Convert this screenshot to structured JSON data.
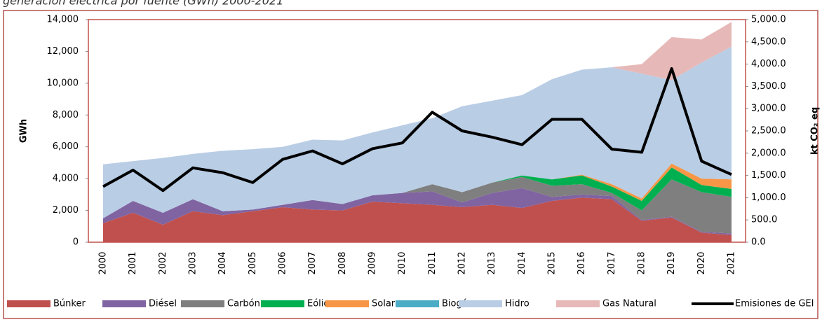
{
  "chart_data": {
    "type": "stacked_area",
    "title": "generación eléctrica por fuente (GWh) 2000-2021",
    "ylabel": "GWh",
    "y2label": "kt CO₂ eq",
    "categories": [
      "2000",
      "2001",
      "2002",
      "2003",
      "2004",
      "2005",
      "2006",
      "2007",
      "2008",
      "2009",
      "2010",
      "2011",
      "2012",
      "2013",
      "2014",
      "2015",
      "2016",
      "2017",
      "2018",
      "2019",
      "2020",
      "2021"
    ],
    "ylim": [
      0,
      14000
    ],
    "yticks": [
      0,
      {
        "value": 2000,
        "label": "2,000"
      },
      {
        "value": 4000,
        "label": "4,000"
      },
      {
        "value": 6000,
        "label": "6,000"
      },
      {
        "value": 8000,
        "label": "8,000"
      },
      {
        "value": 10000,
        "label": "10,000"
      },
      {
        "value": 12000,
        "label": "12,000"
      },
      {
        "value": 14000,
        "label": "14,000"
      }
    ],
    "y2lim": [
      0,
      5000
    ],
    "y2ticks": [
      {
        "value": 0,
        "label": "0.0"
      },
      {
        "value": 500,
        "label": "500.0"
      },
      {
        "value": 1000,
        "label": "1,000.0"
      },
      {
        "value": 1500,
        "label": "1,500.0"
      },
      {
        "value": 2000,
        "label": "2,000.0"
      },
      {
        "value": 2500,
        "label": "2,500.0"
      },
      {
        "value": 3000,
        "label": "3,000.0"
      },
      {
        "value": 3500,
        "label": "3,500.0"
      },
      {
        "value": 4000,
        "label": "4,000.0"
      },
      {
        "value": 4500,
        "label": "4,500.0"
      },
      {
        "value": 5000,
        "label": "5,000.0"
      }
    ],
    "series": [
      {
        "name": "Búnker",
        "color": "#c0504d",
        "values": [
          1200,
          1850,
          1100,
          1950,
          1700,
          1950,
          2200,
          2050,
          2000,
          2550,
          2450,
          2350,
          2200,
          2350,
          2150,
          2600,
          2800,
          2700,
          1350,
          1550,
          600,
          450
        ]
      },
      {
        "name": "Diésel",
        "color": "#8064a2",
        "values": [
          300,
          750,
          750,
          750,
          250,
          100,
          150,
          600,
          400,
          400,
          650,
          850,
          300,
          750,
          1250,
          250,
          200,
          200,
          50,
          50,
          50,
          100
        ]
      },
      {
        "name": "Carbón",
        "color": "#7f7f7f",
        "values": [
          0,
          0,
          0,
          0,
          0,
          0,
          0,
          0,
          0,
          0,
          0,
          450,
          650,
          650,
          700,
          700,
          650,
          200,
          600,
          2350,
          2500,
          2300
        ]
      },
      {
        "name": "Eólico",
        "color": "#00b050",
        "values": [
          0,
          0,
          0,
          0,
          0,
          0,
          0,
          0,
          0,
          0,
          0,
          0,
          0,
          0,
          100,
          400,
          550,
          400,
          600,
          750,
          450,
          500
        ]
      },
      {
        "name": "Solar",
        "color": "#f79646",
        "values": [
          0,
          0,
          0,
          0,
          0,
          0,
          0,
          0,
          0,
          0,
          0,
          0,
          0,
          0,
          0,
          0,
          50,
          150,
          150,
          250,
          400,
          600
        ]
      },
      {
        "name": "Biogás",
        "color": "#4bacc6",
        "values": [
          0,
          0,
          0,
          0,
          0,
          0,
          0,
          0,
          0,
          0,
          0,
          0,
          0,
          0,
          0,
          0,
          0,
          0,
          0,
          0,
          0,
          0
        ]
      },
      {
        "name": "Hidro",
        "color": "#b9cde5",
        "values": [
          3400,
          2500,
          3450,
          2850,
          3800,
          3800,
          3650,
          3800,
          4000,
          3950,
          4250,
          4150,
          5400,
          5150,
          5050,
          6300,
          6600,
          7350,
          7850,
          5250,
          7300,
          8350
        ]
      },
      {
        "name": "Gas Natural",
        "color": "#e6b9b8",
        "values": [
          0,
          0,
          0,
          0,
          0,
          0,
          0,
          0,
          0,
          0,
          0,
          0,
          0,
          0,
          0,
          0,
          0,
          0,
          600,
          2700,
          1450,
          1550
        ]
      },
      {
        "name": "Emisiones de GEI",
        "color": "#000000",
        "axis": "y2",
        "type": "line",
        "values": [
          1250,
          1620,
          1160,
          1670,
          1560,
          1340,
          1860,
          2050,
          1760,
          2100,
          2230,
          2920,
          2500,
          2360,
          2190,
          2760,
          2760,
          2090,
          2020,
          3900,
          1820,
          1520
        ]
      }
    ]
  }
}
